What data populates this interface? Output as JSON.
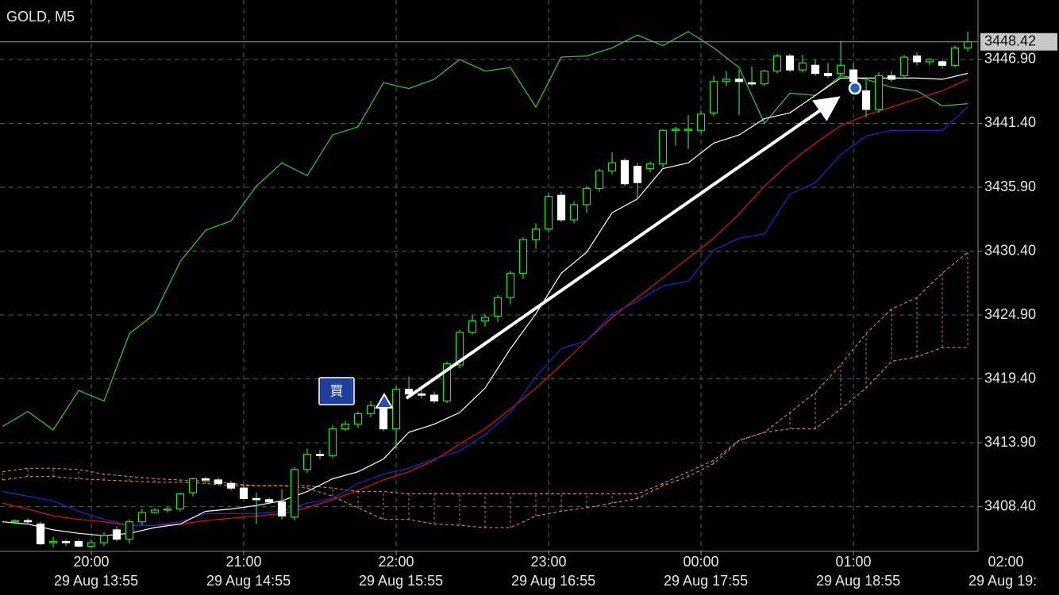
{
  "chart_data": {
    "type": "candlestick",
    "title": "GOLD, M5",
    "xlim": [
      -1.19,
      75.81
    ],
    "ylim": [
      3404.55,
      3452.02
    ],
    "xticks": [
      {
        "value": 6,
        "label": "20:00"
      },
      {
        "value": 18,
        "label": "21:00"
      },
      {
        "value": 30,
        "label": "22:00"
      },
      {
        "value": 42,
        "label": "23:00"
      },
      {
        "value": 54,
        "label": "00:00"
      },
      {
        "value": 66,
        "label": "01:00"
      },
      {
        "value": 78,
        "label": "02:00"
      }
    ],
    "xticks_secondary": [
      {
        "value": 6,
        "label": "29 Aug 13:55"
      },
      {
        "value": 18,
        "label": "29 Aug 14:55"
      },
      {
        "value": 30,
        "label": "29 Aug 15:55"
      },
      {
        "value": 42,
        "label": "29 Aug 16:55"
      },
      {
        "value": 54,
        "label": "29 Aug 17:55"
      },
      {
        "value": 66,
        "label": "29 Aug 18:55"
      },
      {
        "value": 78,
        "label": "29 Aug 19:"
      }
    ],
    "yticks": [
      {
        "value": 3446.9,
        "label": "3446.90"
      },
      {
        "value": 3441.4,
        "label": "3441.40"
      },
      {
        "value": 3435.9,
        "label": "3435.90"
      },
      {
        "value": 3430.4,
        "label": "3430.40"
      },
      {
        "value": 3424.9,
        "label": "3424.90"
      },
      {
        "value": 3419.4,
        "label": "3419.40"
      },
      {
        "value": 3413.9,
        "label": "3413.90"
      },
      {
        "value": 3408.4,
        "label": "3408.40"
      }
    ],
    "grid": true,
    "candles": {
      "bull_color": "#22e022",
      "bear_color": "#ffffff",
      "open": [
        3407.1,
        3407.2,
        3406.9,
        3405.3,
        3405.4,
        3405.4,
        3405.0,
        3405.3,
        3406.4,
        3405.6,
        3407.1,
        3407.9,
        3408.1,
        3408.2,
        3409.6,
        3410.8,
        3410.7,
        3410.4,
        3410.0,
        3409.1,
        3409.0,
        3408.8,
        3407.5,
        3411.6,
        3412.9,
        3412.8,
        3415.1,
        3415.5,
        3416.4,
        3416.9,
        3415.1,
        3418.5,
        3418.1,
        3418.0,
        3417.5,
        3420.6,
        3423.4,
        3424.4,
        3424.8,
        3426.4,
        3428.5,
        3431.4,
        3432.3,
        3435.2,
        3433.1,
        3434.4,
        3435.8,
        3437.3,
        3438.2,
        3437.7,
        3437.5,
        3437.9,
        3440.8,
        3440.9,
        3440.8,
        3442.3,
        3445.0,
        3445.2,
        3444.9,
        3444.8,
        3445.9,
        3447.2,
        3446.0,
        3446.4,
        3445.7,
        3445.7,
        3446.0,
        3444.2,
        3442.6,
        3445.5,
        3445.5,
        3447.2,
        3446.7,
        3446.7,
        3446.4,
        3447.9
      ],
      "high": [
        3407.3,
        3407.4,
        3407.1,
        3405.8,
        3405.6,
        3405.6,
        3405.6,
        3406.2,
        3406.7,
        3407.3,
        3408.2,
        3408.3,
        3408.4,
        3409.6,
        3410.9,
        3411.0,
        3410.9,
        3410.6,
        3410.3,
        3409.6,
        3409.2,
        3409.9,
        3411.8,
        3413.4,
        3413.3,
        3415.4,
        3415.8,
        3416.6,
        3417.5,
        3417.3,
        3418.8,
        3419.6,
        3418.6,
        3418.3,
        3420.9,
        3423.6,
        3424.9,
        3425.0,
        3426.6,
        3428.7,
        3431.6,
        3432.8,
        3435.4,
        3435.5,
        3434.7,
        3436.0,
        3437.5,
        3438.9,
        3438.4,
        3438.0,
        3438.1,
        3440.9,
        3441.1,
        3442.1,
        3442.5,
        3445.5,
        3445.9,
        3446.0,
        3446.3,
        3446.0,
        3447.4,
        3447.4,
        3447.3,
        3446.9,
        3446.6,
        3448.5,
        3446.6,
        3445.1,
        3445.8,
        3445.9,
        3447.3,
        3447.5,
        3447.0,
        3446.9,
        3448.1,
        3449.3
      ],
      "low": [
        3406.9,
        3406.9,
        3405.1,
        3404.9,
        3405.0,
        3404.9,
        3404.8,
        3405.0,
        3405.4,
        3405.2,
        3406.8,
        3407.8,
        3407.9,
        3408.0,
        3409.3,
        3410.4,
        3410.2,
        3409.8,
        3409.0,
        3406.9,
        3408.6,
        3407.3,
        3407.2,
        3411.3,
        3412.5,
        3412.6,
        3414.9,
        3415.2,
        3416.1,
        3414.9,
        3413.4,
        3417.9,
        3417.7,
        3417.3,
        3417.3,
        3420.3,
        3423.2,
        3423.9,
        3424.3,
        3425.8,
        3428.0,
        3430.6,
        3432.0,
        3432.9,
        3432.8,
        3433.7,
        3435.5,
        3437.0,
        3436.0,
        3434.9,
        3437.2,
        3437.6,
        3439.5,
        3439.2,
        3440.5,
        3442.0,
        3444.6,
        3442.1,
        3444.6,
        3444.6,
        3445.7,
        3445.8,
        3445.8,
        3445.5,
        3445.3,
        3445.5,
        3444.8,
        3441.9,
        3442.3,
        3445.0,
        3445.2,
        3446.4,
        3446.4,
        3446.1,
        3446.2,
        3447.6
      ],
      "close": [
        3407.2,
        3407.1,
        3405.2,
        3405.4,
        3405.3,
        3405.0,
        3405.3,
        3405.9,
        3405.6,
        3407.1,
        3407.9,
        3408.1,
        3408.2,
        3409.5,
        3410.8,
        3410.7,
        3410.4,
        3410.0,
        3409.1,
        3409.0,
        3408.8,
        3407.6,
        3411.6,
        3412.9,
        3412.8,
        3415.1,
        3415.5,
        3416.4,
        3417.1,
        3415.1,
        3418.5,
        3418.1,
        3418.0,
        3417.5,
        3420.7,
        3423.4,
        3424.4,
        3424.7,
        3426.4,
        3428.5,
        3431.4,
        3432.3,
        3435.1,
        3433.1,
        3434.4,
        3435.8,
        3437.3,
        3438.0,
        3436.2,
        3436.3,
        3437.9,
        3440.8,
        3440.9,
        3440.9,
        3442.2,
        3445.0,
        3445.2,
        3445.0,
        3444.8,
        3445.9,
        3447.2,
        3446.0,
        3446.6,
        3445.7,
        3445.5,
        3446.4,
        3445.0,
        3442.6,
        3445.5,
        3445.2,
        3447.1,
        3446.7,
        3446.9,
        3446.4,
        3447.9,
        3448.42
      ]
    },
    "indicators": {
      "x": [
        -1,
        1,
        3,
        5,
        7,
        9,
        11,
        13,
        15,
        17,
        19,
        21,
        23,
        25,
        27,
        29,
        31,
        33,
        35,
        37,
        39,
        41,
        43,
        45,
        47,
        49,
        51,
        53,
        55,
        57,
        59,
        61,
        63,
        65,
        67,
        69,
        71,
        73,
        75
      ],
      "series": [
        {
          "color": "#2ecf2e",
          "values": [
            3415.3,
            3416.6,
            3415.0,
            3418.4,
            3417.5,
            3423.3,
            3425.0,
            3429.5,
            3432.2,
            3433.0,
            3436.0,
            3438.0,
            3436.9,
            3440.4,
            3441.1,
            3444.9,
            3444.4,
            3445.2,
            3446.9,
            3445.9,
            3446.2,
            3442.8,
            3447.1,
            3447.2,
            3447.9,
            3449.0,
            3448.1,
            3449.3,
            3447.9,
            3446.2,
            3441.4,
            3444.0,
            3443.8,
            3445.5,
            3445.2,
            3444.5,
            3444.2,
            3442.9,
            3443.1
          ]
        },
        {
          "color": "#e01414",
          "values": [
            3408.7,
            3408.2,
            3407.6,
            3407.3,
            3407.1,
            3406.8,
            3406.8,
            3406.9,
            3407.2,
            3407.4,
            3407.6,
            3407.8,
            3408.3,
            3409.0,
            3409.8,
            3410.7,
            3411.4,
            3412.4,
            3413.8,
            3415.1,
            3416.8,
            3418.6,
            3420.6,
            3422.7,
            3424.7,
            3426.4,
            3428.1,
            3429.8,
            3431.5,
            3433.6,
            3436.0,
            3438.0,
            3439.7,
            3441.2,
            3442.1,
            3442.8,
            3443.5,
            3444.2,
            3445.2
          ]
        },
        {
          "color": "#2424d8",
          "values": [
            3409.7,
            3409.3,
            3408.9,
            3408.0,
            3407.3,
            3406.8,
            3406.8,
            3407.1,
            3407.8,
            3407.8,
            3407.8,
            3408.0,
            3408.7,
            3409.1,
            3410.4,
            3411.2,
            3411.7,
            3412.5,
            3413.2,
            3414.6,
            3416.5,
            3419.6,
            3422.0,
            3422.7,
            3425.0,
            3426.1,
            3427.4,
            3427.8,
            3430.5,
            3431.5,
            3431.9,
            3435.3,
            3436.3,
            3438.7,
            3440.3,
            3440.8,
            3440.8,
            3440.8,
            3442.8
          ]
        },
        {
          "color": "#ffffff",
          "values": [
            3407.1,
            3406.9,
            3406.4,
            3406.1,
            3405.9,
            3406.1,
            3406.6,
            3406.9,
            3408.0,
            3408.2,
            3408.5,
            3408.9,
            3409.7,
            3410.8,
            3411.4,
            3412.5,
            3414.8,
            3415.5,
            3416.5,
            3418.6,
            3422.0,
            3425.0,
            3428.5,
            3430.3,
            3433.7,
            3434.9,
            3437.5,
            3438.0,
            3439.7,
            3440.4,
            3441.8,
            3442.3,
            3443.8,
            3445.3,
            3445.3,
            3445.3,
            3445.3,
            3445.2,
            3445.7
          ]
        }
      ],
      "cloud": {
        "color": "#e8955a",
        "span_a": [
          3410.7,
          3411.0,
          3411.0,
          3410.8,
          3410.7,
          3410.6,
          3410.5,
          3410.5,
          3410.4,
          3410.2,
          3410.2,
          3410.2,
          3410.0,
          3409.3,
          3408.3,
          3407.3,
          3407.3,
          3406.9,
          3406.8,
          3406.6,
          3406.6,
          3407.6,
          3408.0,
          3408.3,
          3408.7,
          3409.1,
          3410.2,
          3411.0,
          3412.1,
          3414.1,
          3414.8,
          3416.5,
          3418.2,
          3420.6,
          3423.3,
          3425.4,
          3426.4,
          3428.5,
          3430.3
        ],
        "span_b": [
          3411.4,
          3411.7,
          3411.7,
          3411.6,
          3411.2,
          3411.0,
          3410.8,
          3410.7,
          3410.6,
          3410.4,
          3410.2,
          3410.2,
          3410.2,
          3410.0,
          3409.7,
          3409.7,
          3409.5,
          3409.5,
          3409.5,
          3409.5,
          3409.5,
          3409.5,
          3409.5,
          3409.5,
          3409.5,
          3409.5,
          3410.4,
          3411.4,
          3412.4,
          3414.1,
          3414.8,
          3415.1,
          3415.1,
          3416.8,
          3418.6,
          3420.9,
          3421.3,
          3422.1,
          3422.1
        ]
      }
    },
    "annotations": {
      "buy_label": "買"
    }
  }
}
